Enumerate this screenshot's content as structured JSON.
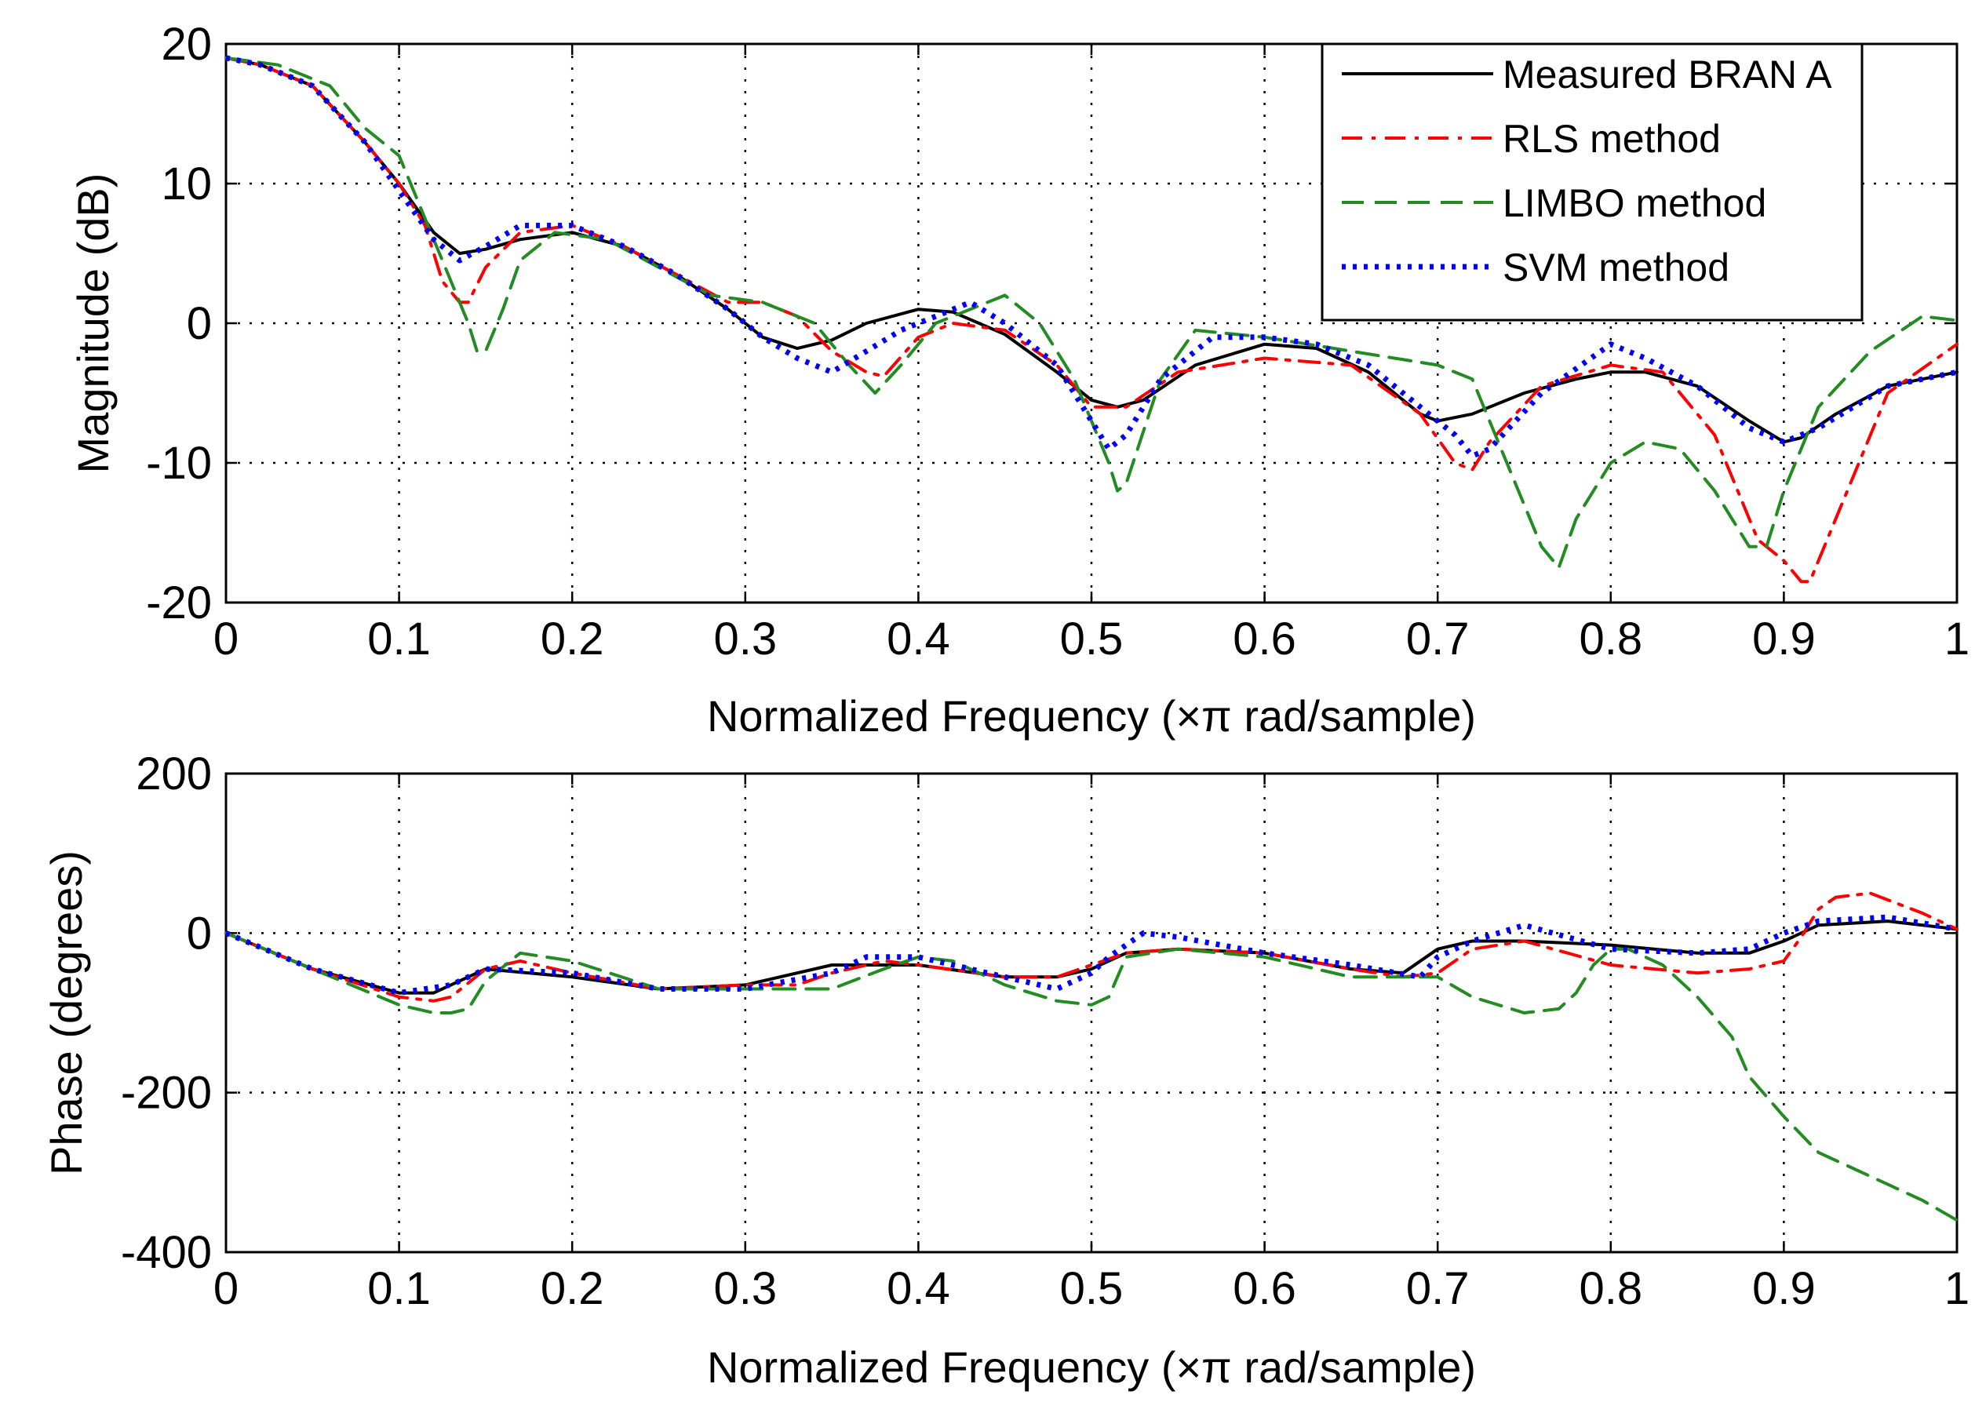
{
  "chart_data": [
    {
      "type": "line",
      "id": "magnitude",
      "title": "",
      "xlabel": "Normalized Frequency  (×π rad/sample)",
      "ylabel": "Magnitude (dB)",
      "xlim": [
        0,
        1
      ],
      "ylim": [
        -20,
        20
      ],
      "xticks": [
        "0",
        "0.1",
        "0.2",
        "0.3",
        "0.4",
        "0.5",
        "0.6",
        "0.7",
        "0.8",
        "0.9",
        "1"
      ],
      "yticks": [
        "20",
        "10",
        "0",
        "-10",
        "-20"
      ],
      "grid": true,
      "legend_position": "top-right",
      "series": [
        {
          "name": "Measured BRAN A",
          "color": "#000000",
          "style": "solid",
          "x": [
            0,
            0.02,
            0.05,
            0.08,
            0.1,
            0.12,
            0.135,
            0.15,
            0.17,
            0.2,
            0.23,
            0.26,
            0.29,
            0.31,
            0.33,
            0.35,
            0.37,
            0.4,
            0.42,
            0.45,
            0.48,
            0.5,
            0.515,
            0.53,
            0.56,
            0.6,
            0.63,
            0.66,
            0.69,
            0.7,
            0.72,
            0.75,
            0.78,
            0.8,
            0.82,
            0.85,
            0.88,
            0.9,
            0.91,
            0.93,
            0.96,
            1
          ],
          "y": [
            19,
            18.5,
            17,
            13,
            10,
            6.5,
            5,
            5.3,
            6,
            6.5,
            5.5,
            3.5,
            1,
            -1,
            -1.8,
            -1.2,
            0,
            1,
            0.8,
            -0.8,
            -3.5,
            -5.5,
            -6,
            -5.5,
            -3,
            -1.5,
            -1.8,
            -3.5,
            -6.5,
            -7,
            -6.5,
            -5,
            -4,
            -3.5,
            -3.5,
            -4.5,
            -7,
            -8.5,
            -8.2,
            -6.5,
            -4.5,
            -3.5
          ]
        },
        {
          "name": "RLS method",
          "color": "#ff0000",
          "style": "dashdot",
          "x": [
            0,
            0.02,
            0.05,
            0.08,
            0.1,
            0.115,
            0.125,
            0.135,
            0.14,
            0.15,
            0.17,
            0.2,
            0.23,
            0.26,
            0.29,
            0.31,
            0.33,
            0.35,
            0.37,
            0.38,
            0.4,
            0.42,
            0.45,
            0.48,
            0.5,
            0.52,
            0.55,
            0.6,
            0.65,
            0.69,
            0.71,
            0.72,
            0.73,
            0.76,
            0.8,
            0.83,
            0.86,
            0.885,
            0.9,
            0.91,
            0.915,
            0.93,
            0.96,
            1
          ],
          "y": [
            19,
            18.5,
            17,
            13,
            10,
            7,
            3,
            1.5,
            1.5,
            4,
            6.5,
            7,
            5.5,
            3.5,
            1.5,
            1.5,
            0.5,
            -2,
            -3.5,
            -3.8,
            -1,
            0,
            -0.5,
            -3,
            -6,
            -6,
            -3.5,
            -2.5,
            -3,
            -6.5,
            -10,
            -10.5,
            -8.5,
            -4.5,
            -3,
            -3.5,
            -8,
            -15.5,
            -17,
            -18.5,
            -18.5,
            -14,
            -5,
            -1.5
          ]
        },
        {
          "name": "LIMBO method",
          "color": "#228b22",
          "style": "dashed",
          "x": [
            0,
            0.03,
            0.06,
            0.08,
            0.1,
            0.11,
            0.12,
            0.13,
            0.14,
            0.145,
            0.15,
            0.16,
            0.17,
            0.19,
            0.22,
            0.25,
            0.28,
            0.31,
            0.34,
            0.36,
            0.375,
            0.39,
            0.41,
            0.43,
            0.45,
            0.47,
            0.49,
            0.51,
            0.515,
            0.52,
            0.54,
            0.56,
            0.6,
            0.65,
            0.7,
            0.72,
            0.74,
            0.76,
            0.77,
            0.78,
            0.8,
            0.82,
            0.84,
            0.86,
            0.88,
            0.89,
            0.9,
            0.92,
            0.95,
            0.98,
            1
          ],
          "y": [
            19,
            18.5,
            17,
            14,
            12,
            9,
            6,
            3,
            0,
            -2,
            -2,
            1,
            4.5,
            6.5,
            6,
            4,
            2,
            1.5,
            0,
            -3,
            -5,
            -3,
            0,
            1,
            2,
            0,
            -4,
            -10,
            -12,
            -11.5,
            -4,
            -0.5,
            -1,
            -2,
            -3,
            -4,
            -10,
            -16,
            -17.5,
            -14,
            -10,
            -8.5,
            -9,
            -12,
            -16,
            -16,
            -12,
            -6,
            -2,
            0.5,
            0.2
          ]
        },
        {
          "name": "SVM method",
          "color": "#0000ff",
          "style": "dotted",
          "x": [
            0,
            0.02,
            0.05,
            0.08,
            0.1,
            0.12,
            0.135,
            0.15,
            0.17,
            0.2,
            0.23,
            0.26,
            0.29,
            0.31,
            0.33,
            0.35,
            0.37,
            0.39,
            0.41,
            0.43,
            0.45,
            0.48,
            0.5,
            0.51,
            0.52,
            0.54,
            0.57,
            0.6,
            0.63,
            0.66,
            0.69,
            0.7,
            0.71,
            0.72,
            0.73,
            0.76,
            0.8,
            0.82,
            0.85,
            0.88,
            0.9,
            0.92,
            0.96,
            1
          ],
          "y": [
            19,
            18.5,
            17,
            13,
            9.5,
            6,
            4.5,
            5.5,
            7,
            7,
            5.5,
            3.5,
            1,
            -1,
            -2.5,
            -3.5,
            -2,
            -0.5,
            0.5,
            1.5,
            0,
            -3,
            -7,
            -9,
            -8,
            -4,
            -1,
            -1,
            -1.5,
            -3,
            -6,
            -7,
            -8,
            -9.5,
            -9,
            -5,
            -1.5,
            -2.5,
            -4.5,
            -7.5,
            -8.5,
            -7.5,
            -4.5,
            -3.5
          ]
        }
      ]
    },
    {
      "type": "line",
      "id": "phase",
      "title": "",
      "xlabel": "Normalized Frequency  (×π rad/sample)",
      "ylabel": "Phase (degrees)",
      "xlim": [
        0,
        1
      ],
      "ylim": [
        -400,
        200
      ],
      "xticks": [
        "0",
        "0.1",
        "0.2",
        "0.3",
        "0.4",
        "0.5",
        "0.6",
        "0.7",
        "0.8",
        "0.9",
        "1"
      ],
      "yticks": [
        "200",
        "0",
        "-200",
        "-400"
      ],
      "grid": true,
      "series": [
        {
          "name": "Measured BRAN A",
          "color": "#000000",
          "style": "solid",
          "x": [
            0,
            0.05,
            0.1,
            0.12,
            0.15,
            0.2,
            0.25,
            0.3,
            0.35,
            0.4,
            0.45,
            0.48,
            0.5,
            0.52,
            0.55,
            0.6,
            0.65,
            0.68,
            0.7,
            0.72,
            0.75,
            0.8,
            0.85,
            0.88,
            0.9,
            0.92,
            0.96,
            1
          ],
          "y": [
            0,
            -45,
            -75,
            -75,
            -45,
            -55,
            -70,
            -65,
            -40,
            -40,
            -55,
            -55,
            -45,
            -25,
            -20,
            -25,
            -45,
            -50,
            -20,
            -10,
            -10,
            -15,
            -25,
            -25,
            -10,
            10,
            15,
            5
          ]
        },
        {
          "name": "RLS method",
          "color": "#ff0000",
          "style": "dashdot",
          "x": [
            0,
            0.05,
            0.1,
            0.12,
            0.13,
            0.15,
            0.17,
            0.2,
            0.25,
            0.3,
            0.33,
            0.35,
            0.38,
            0.4,
            0.45,
            0.48,
            0.5,
            0.52,
            0.55,
            0.6,
            0.65,
            0.68,
            0.7,
            0.72,
            0.75,
            0.8,
            0.85,
            0.88,
            0.9,
            0.91,
            0.92,
            0.93,
            0.95,
            0.98,
            1
          ],
          "y": [
            0,
            -45,
            -80,
            -85,
            -80,
            -45,
            -35,
            -50,
            -70,
            -65,
            -65,
            -50,
            -35,
            -40,
            -55,
            -55,
            -40,
            -25,
            -20,
            -25,
            -45,
            -55,
            -50,
            -20,
            -10,
            -40,
            -50,
            -45,
            -35,
            -5,
            30,
            45,
            50,
            25,
            5
          ]
        },
        {
          "name": "LIMBO method",
          "color": "#228b22",
          "style": "dashed",
          "x": [
            0,
            0.05,
            0.1,
            0.12,
            0.13,
            0.14,
            0.15,
            0.17,
            0.2,
            0.25,
            0.3,
            0.35,
            0.38,
            0.4,
            0.42,
            0.45,
            0.48,
            0.5,
            0.51,
            0.52,
            0.55,
            0.6,
            0.65,
            0.7,
            0.72,
            0.75,
            0.77,
            0.78,
            0.79,
            0.8,
            0.81,
            0.83,
            0.85,
            0.87,
            0.88,
            0.9,
            0.92,
            0.95,
            0.98,
            1
          ],
          "y": [
            0,
            -45,
            -90,
            -100,
            -100,
            -95,
            -60,
            -25,
            -35,
            -70,
            -70,
            -70,
            -45,
            -30,
            -35,
            -65,
            -85,
            -90,
            -80,
            -30,
            -20,
            -30,
            -55,
            -55,
            -80,
            -100,
            -95,
            -75,
            -40,
            -20,
            -20,
            -40,
            -80,
            -130,
            -180,
            -230,
            -275,
            -305,
            -335,
            -360
          ]
        },
        {
          "name": "SVM method",
          "color": "#0000ff",
          "style": "dotted",
          "x": [
            0,
            0.05,
            0.1,
            0.13,
            0.15,
            0.2,
            0.25,
            0.3,
            0.35,
            0.37,
            0.4,
            0.45,
            0.48,
            0.5,
            0.51,
            0.52,
            0.53,
            0.55,
            0.6,
            0.65,
            0.69,
            0.7,
            0.72,
            0.75,
            0.8,
            0.85,
            0.88,
            0.9,
            0.92,
            0.96,
            1
          ],
          "y": [
            0,
            -45,
            -75,
            -65,
            -45,
            -50,
            -70,
            -70,
            -50,
            -30,
            -30,
            -55,
            -70,
            -50,
            -30,
            -15,
            0,
            -5,
            -25,
            -40,
            -55,
            -30,
            -10,
            10,
            -20,
            -25,
            -20,
            0,
            15,
            20,
            5
          ]
        }
      ]
    }
  ]
}
